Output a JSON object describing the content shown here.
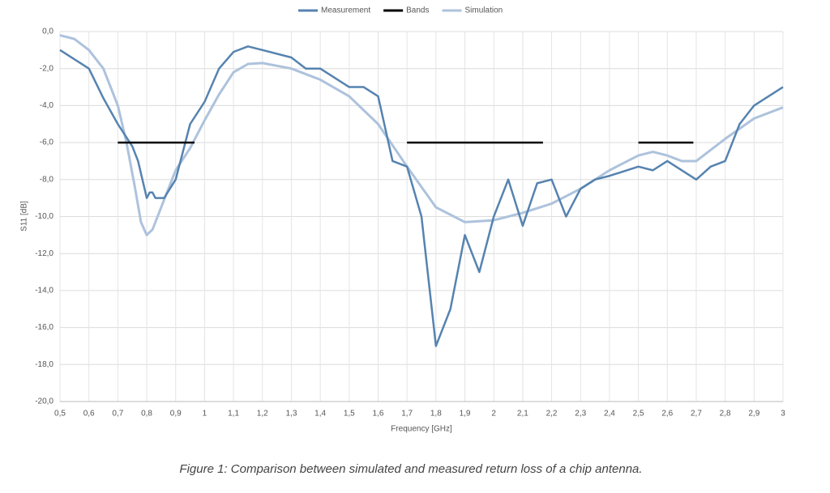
{
  "chart_data": {
    "type": "line",
    "x_label": "Frequency [GHz]",
    "y_label": "S11 [dB]",
    "caption": "Figure 1: Comparison between simulated and measured return loss of a chip antenna.",
    "xlim": [
      0.5,
      3
    ],
    "ylim": [
      -20,
      0
    ],
    "grid": true,
    "legend": "top",
    "xticks": [
      {
        "value": 0.5,
        "label": "0,5"
      },
      {
        "value": 0.6,
        "label": "0,6"
      },
      {
        "value": 0.7,
        "label": "0,7"
      },
      {
        "value": 0.8,
        "label": "0,8"
      },
      {
        "value": 0.9,
        "label": "0,9"
      },
      1,
      {
        "value": 1.1,
        "label": "1,1"
      },
      {
        "value": 1.2,
        "label": "1,2"
      },
      {
        "value": 1.3,
        "label": "1,3"
      },
      {
        "value": 1.4,
        "label": "1,4"
      },
      {
        "value": 1.5,
        "label": "1,5"
      },
      {
        "value": 1.6,
        "label": "1,6"
      },
      {
        "value": 1.7,
        "label": "1,7"
      },
      {
        "value": 1.8,
        "label": "1,8"
      },
      {
        "value": 1.9,
        "label": "1,9"
      },
      2,
      {
        "value": 2.1,
        "label": "2,1"
      },
      {
        "value": 2.2,
        "label": "2,2"
      },
      {
        "value": 2.3,
        "label": "2,3"
      },
      {
        "value": 2.4,
        "label": "2,4"
      },
      {
        "value": 2.5,
        "label": "2,5"
      },
      {
        "value": 2.6,
        "label": "2,6"
      },
      {
        "value": 2.7,
        "label": "2,7"
      },
      {
        "value": 2.8,
        "label": "2,8"
      },
      {
        "value": 2.9,
        "label": "2,9"
      },
      3
    ],
    "yticks": [
      {
        "value": 0,
        "label": "0,0"
      },
      {
        "value": -2,
        "label": "-2,0"
      },
      {
        "value": -4,
        "label": "-4,0"
      },
      {
        "value": -6,
        "label": "-6,0"
      },
      {
        "value": -8,
        "label": "-8,0"
      },
      {
        "value": -10,
        "label": "-10,0"
      },
      {
        "value": -12,
        "label": "-12,0"
      },
      {
        "value": -14,
        "label": "-14,0"
      },
      {
        "value": -16,
        "label": "-16,0"
      },
      {
        "value": -18,
        "label": "-18,0"
      },
      {
        "value": -20,
        "label": "-20,0"
      }
    ],
    "series": [
      {
        "name": "Measurement",
        "color": "#5683b0",
        "width": 2.5,
        "x": [
          0.5,
          0.6,
          0.65,
          0.7,
          0.75,
          0.77,
          0.8,
          0.81,
          0.82,
          0.83,
          0.86,
          0.9,
          0.95,
          1.0,
          1.05,
          1.1,
          1.15,
          1.2,
          1.3,
          1.35,
          1.4,
          1.5,
          1.55,
          1.6,
          1.65,
          1.7,
          1.75,
          1.8,
          1.85,
          1.9,
          1.95,
          2.0,
          2.05,
          2.1,
          2.15,
          2.2,
          2.25,
          2.3,
          2.35,
          2.4,
          2.5,
          2.55,
          2.6,
          2.7,
          2.75,
          2.8,
          2.85,
          2.9,
          3.0
        ],
        "values": [
          -1.0,
          -2.0,
          -3.6,
          -5.0,
          -6.2,
          -7.0,
          -9.0,
          -8.7,
          -8.7,
          -9.0,
          -9.0,
          -8.0,
          -5.0,
          -3.8,
          -2.0,
          -1.1,
          -0.8,
          -1.0,
          -1.4,
          -2.0,
          -2.0,
          -3.0,
          -3.0,
          -3.5,
          -7.0,
          -7.3,
          -10.0,
          -17.0,
          -15.0,
          -11.0,
          -13.0,
          -10.0,
          -8.0,
          -10.5,
          -8.2,
          -8.0,
          -10.0,
          -8.5,
          -8.0,
          -7.8,
          -7.3,
          -7.5,
          -7.0,
          -8.0,
          -7.3,
          -7.0,
          -5.0,
          -4.0,
          -3.0
        ]
      },
      {
        "name": "Bands",
        "color": "#000000",
        "width": 2.5,
        "x": [
          0.7,
          0.965,
          1.3,
          1.7,
          2.17,
          2.3,
          2.5,
          2.69
        ],
        "values": [
          -6,
          -6,
          null,
          -6,
          -6,
          null,
          -6,
          -6
        ]
      },
      {
        "name": "Simulation",
        "color": "#adc2dc",
        "width": 3,
        "x": [
          0.5,
          0.55,
          0.6,
          0.65,
          0.7,
          0.73,
          0.76,
          0.78,
          0.8,
          0.82,
          0.85,
          0.9,
          0.95,
          1.0,
          1.05,
          1.1,
          1.15,
          1.2,
          1.3,
          1.4,
          1.5,
          1.6,
          1.7,
          1.8,
          1.9,
          2.0,
          2.1,
          2.2,
          2.3,
          2.4,
          2.5,
          2.55,
          2.6,
          2.65,
          2.7,
          2.8,
          2.9,
          3.0
        ],
        "values": [
          -0.2,
          -0.4,
          -1.0,
          -2.0,
          -4.0,
          -6.0,
          -8.5,
          -10.3,
          -11.0,
          -10.7,
          -9.5,
          -7.5,
          -6.3,
          -4.8,
          -3.4,
          -2.2,
          -1.75,
          -1.7,
          -2.0,
          -2.6,
          -3.5,
          -5.0,
          -7.3,
          -9.5,
          -10.3,
          -10.2,
          -9.8,
          -9.3,
          -8.5,
          -7.5,
          -6.7,
          -6.5,
          -6.7,
          -7.0,
          -7.0,
          -5.8,
          -4.7,
          -4.1
        ]
      }
    ]
  }
}
